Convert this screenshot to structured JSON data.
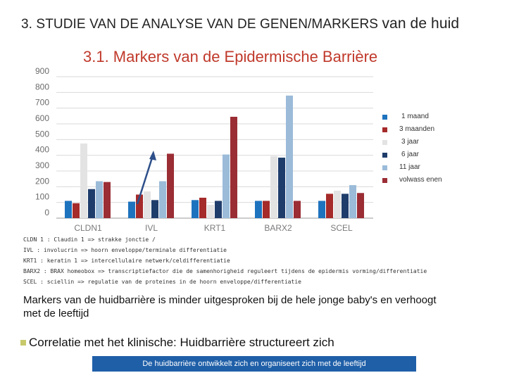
{
  "heading": {
    "main": "3. STUDIE VAN DE ANALYSE VAN DE GENEN/MARKERS ",
    "tail": "van de huid"
  },
  "subheading": "3.1.  Markers van de Epidermische Barrière",
  "chart_data": {
    "type": "bar",
    "categories": [
      "CLDN1",
      "IVL",
      "KRT1",
      "BARX2",
      "SCEL"
    ],
    "series": [
      {
        "name": "1 maand",
        "color": "#1e73be",
        "values": [
          110,
          105,
          115,
          110,
          110
        ]
      },
      {
        "name": "3 maanden",
        "color": "#a52a2a",
        "values": [
          95,
          150,
          130,
          110,
          155
        ]
      },
      {
        "name": "3 jaar",
        "color": "#e3e3e3",
        "values": [
          475,
          170,
          85,
          395,
          175
        ]
      },
      {
        "name": "6 jaar",
        "color": "#1f3d6b",
        "values": [
          185,
          115,
          110,
          385,
          155
        ]
      },
      {
        "name": "11 jaar",
        "color": "#9bbbd9",
        "values": [
          235,
          235,
          405,
          780,
          210
        ]
      },
      {
        "name": "volwassenen",
        "color": "#9b2d35",
        "values": [
          230,
          410,
          645,
          110,
          160
        ]
      }
    ],
    "yticks": [
      "0",
      "100",
      "200",
      "300",
      "400",
      "500",
      "600",
      "700",
      "800",
      "900"
    ],
    "ylim": [
      0,
      900
    ],
    "grid": true,
    "legend": "right"
  },
  "legend_labels": [
    "1 maand",
    "3 maanden",
    "3 jaar",
    "6 jaar",
    "11 jaar",
    "volwass enen"
  ],
  "notes": [
    "CLDN 1 : Claudin 1 => strakke jonctie /",
    "IVL : involucrin => hoorn enveloppe/terminale differentiatie",
    "KRT1 : keratin 1 => intercellulaire netwerk/celdifferentiatie",
    "BARX2 : BRAX homeobox => transcriptiefactor die de samenhorigheid reguleert tijdens de epidermis vorming/differentiatie",
    "SCEL : sciellin => regulatie van de proteines  in de hoorn enveloppe/differentiatie"
  ],
  "conclusion": "Markers van de huidbarrière is minder uitgesproken bij de hele jonge baby's en verhoogt met de leeftijd",
  "bullet": "Correlatie met het klinische: Huidbarrière structureert zich",
  "banner": "De huidbarrière ontwikkelt zich en organiseert zich met de leeftijd",
  "colors": {
    "subheading": "#c0392b",
    "banner": "#1f5fa8",
    "bullet": "#c7c96b"
  }
}
